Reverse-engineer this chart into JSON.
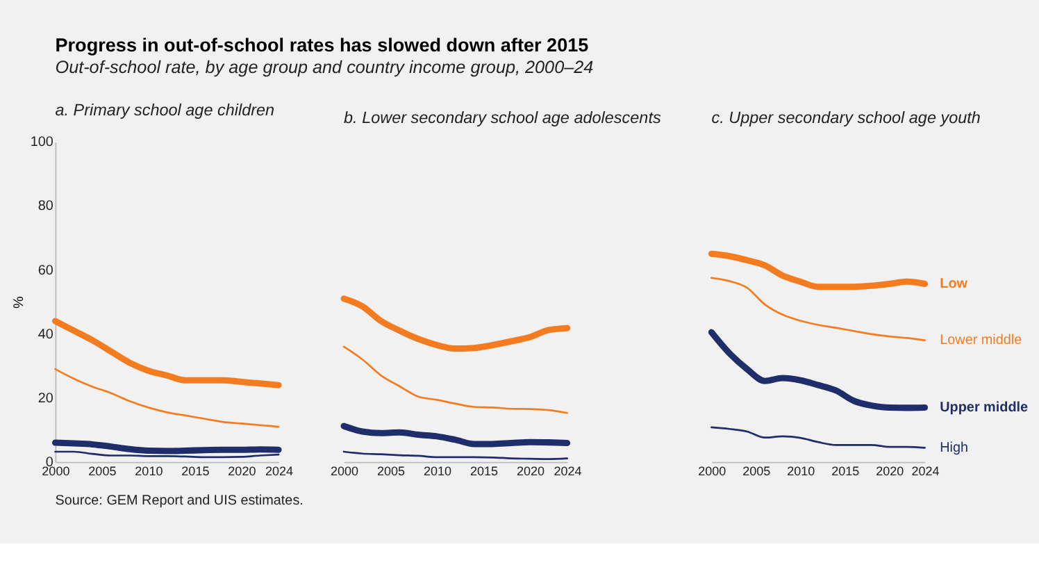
{
  "chart_data": [
    {
      "type": "other",
      "title": "Progress in out-of-school rates has slowed down after 2015",
      "subtitle": "Out-of-school rate, by age group and country income group, 2000–24",
      "annotations": [
        "Source: GEM Report and UIS estimates."
      ]
    },
    {
      "type": "line",
      "title": "a. Primary school age children",
      "ylabel": "%",
      "x": [
        2000,
        2002,
        2004,
        2006,
        2008,
        2010,
        2012,
        2014,
        2016,
        2018,
        2020,
        2022,
        2024
      ],
      "xlim": [
        2000,
        2024
      ],
      "xticks": [
        2000,
        2005,
        2010,
        2015,
        2020,
        2024
      ],
      "ylim": [
        0,
        100
      ],
      "yticks": [
        0,
        20,
        40,
        60,
        80,
        100
      ],
      "grid": false,
      "series": [
        {
          "color": "#f47c20",
          "values": [
            44,
            41,
            38,
            34.5,
            31,
            28.5,
            27,
            25.5,
            25.5,
            25.5,
            25,
            24.5,
            24
          ]
        },
        {
          "color": "#f47c20",
          "values": [
            29,
            26,
            23.5,
            21.5,
            19,
            17,
            15.5,
            14.5,
            13.5,
            12.5,
            12,
            11.5,
            11
          ]
        },
        {
          "color": "#1f2d6b",
          "values": [
            6,
            5.8,
            5.5,
            4.8,
            4,
            3.5,
            3.4,
            3.5,
            3.7,
            3.8,
            3.8,
            3.9,
            3.8
          ]
        },
        {
          "color": "#1f2d6b",
          "values": [
            3.2,
            3.2,
            2.5,
            2,
            2,
            1.8,
            1.8,
            1.7,
            1.5,
            1.5,
            1.6,
            2,
            2.3
          ]
        }
      ]
    },
    {
      "type": "line",
      "title": "b. Lower secondary school age adolescents",
      "x": [
        2000,
        2002,
        2004,
        2006,
        2008,
        2010,
        2012,
        2014,
        2016,
        2018,
        2020,
        2022,
        2024
      ],
      "xlim": [
        2000,
        2024
      ],
      "xticks": [
        2000,
        2005,
        2010,
        2015,
        2020,
        2024
      ],
      "ylim": [
        0,
        100
      ],
      "tick_labels": "x",
      "grid": false,
      "series": [
        {
          "color": "#f47c20",
          "values": [
            51,
            48.6,
            44,
            41,
            38.4,
            36.5,
            35.4,
            35.6,
            36.5,
            37.7,
            39,
            41.2,
            41.8
          ]
        },
        {
          "color": "#f47c20",
          "values": [
            36,
            32,
            27,
            23.6,
            20.4,
            19.4,
            18.2,
            17.2,
            17,
            16.6,
            16.5,
            16.2,
            15.3
          ]
        },
        {
          "color": "#1f2d6b",
          "values": [
            11.2,
            9.5,
            9,
            9.2,
            8.5,
            8,
            6.9,
            5.6,
            5.6,
            5.9,
            6.2,
            6.1,
            5.9
          ]
        },
        {
          "color": "#1f2d6b",
          "values": [
            3.2,
            2.6,
            2.4,
            2.1,
            1.9,
            1.5,
            1.5,
            1.5,
            1.4,
            1.1,
            1,
            0.9,
            1.1
          ]
        }
      ]
    },
    {
      "type": "line",
      "title": "c. Upper secondary school age youth",
      "x": [
        2000,
        2002,
        2004,
        2006,
        2008,
        2010,
        2012,
        2014,
        2016,
        2018,
        2020,
        2022,
        2024
      ],
      "xlim": [
        2000,
        2024
      ],
      "xticks": [
        2000,
        2005,
        2010,
        2015,
        2020,
        2024
      ],
      "ylim": [
        0,
        100
      ],
      "tick_labels": "x",
      "grid": false,
      "series": [
        {
          "name": "Low",
          "color": "#f47c20",
          "values": [
            65,
            64.3,
            63,
            61.4,
            58.2,
            56.3,
            54.7,
            54.7,
            54.7,
            55,
            55.6,
            56.3,
            55.6
          ]
        },
        {
          "name": "Lower middle",
          "color": "#f47c20",
          "values": [
            57.5,
            56.5,
            54.4,
            49.2,
            46,
            44.1,
            42.8,
            41.9,
            40.9,
            39.9,
            39.2,
            38.7,
            38
          ]
        },
        {
          "name": "Upper middle",
          "color": "#1f2d6b",
          "values": [
            40.5,
            34,
            29,
            25.3,
            26.2,
            25.5,
            24,
            22.3,
            19.1,
            17.6,
            17,
            16.9,
            17
          ]
        },
        {
          "name": "High",
          "color": "#1f2d6b",
          "values": [
            10.8,
            10.3,
            9.5,
            7.6,
            8,
            7.5,
            6.2,
            5.3,
            5.3,
            5.3,
            4.7,
            4.7,
            4.4
          ]
        }
      ]
    }
  ]
}
